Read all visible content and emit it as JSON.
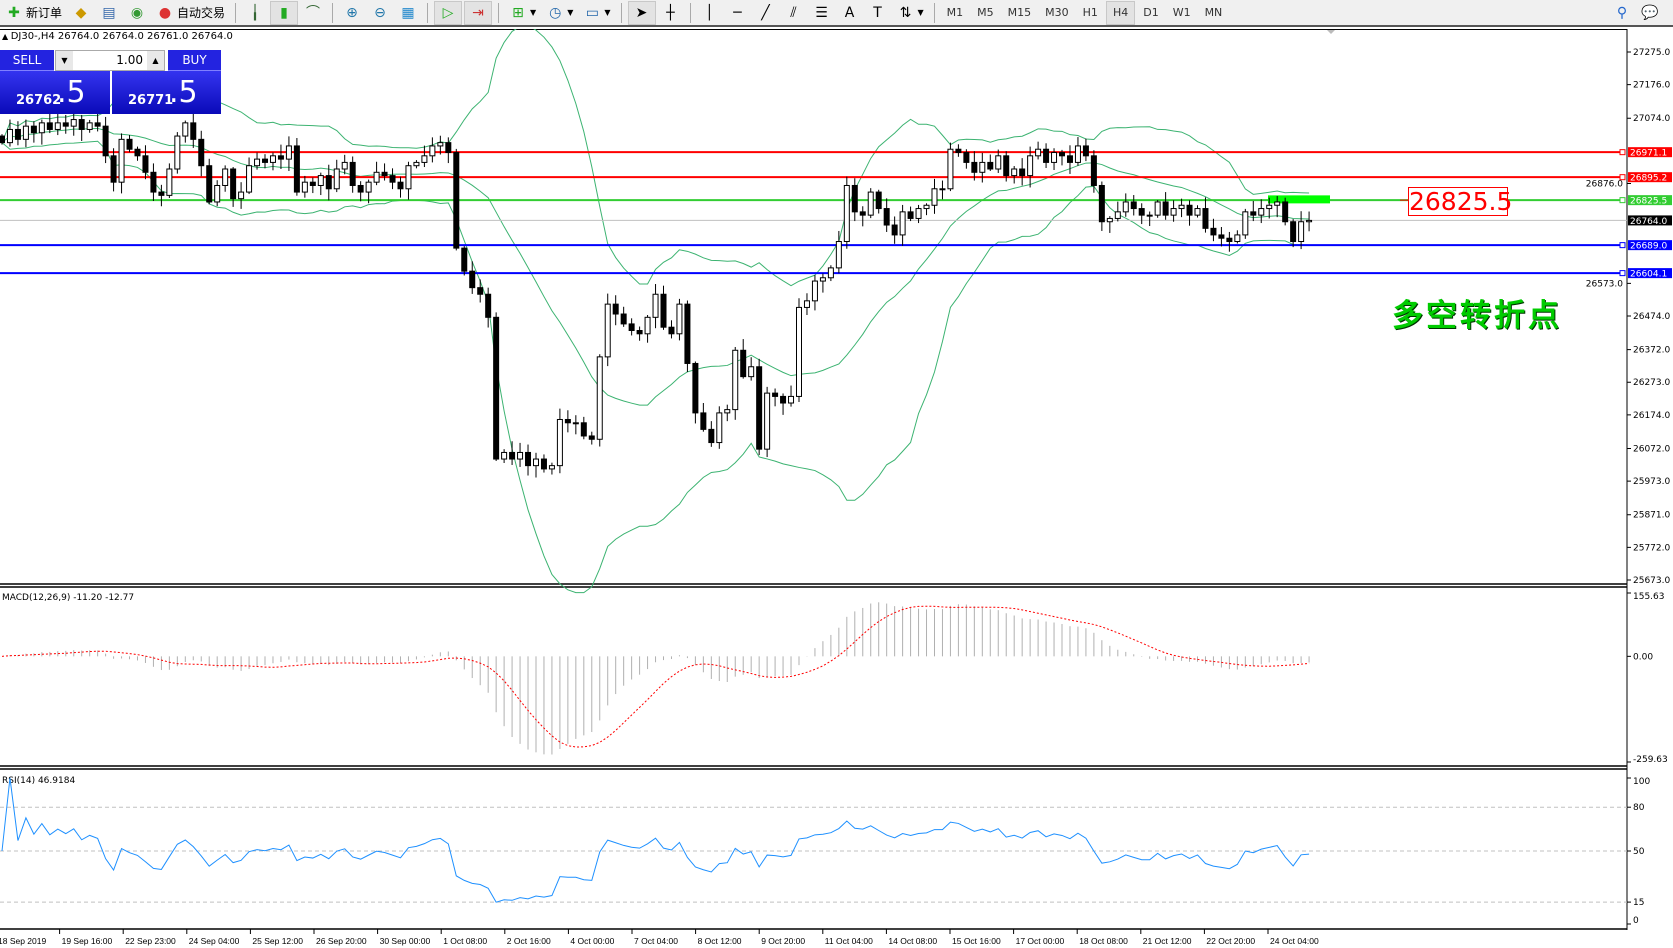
{
  "toolbar": {
    "new_order": "新订单",
    "auto_trading": "自动交易",
    "icons": [
      "new-order-icon",
      "market-watch-icon",
      "data-window-icon",
      "navigator-icon",
      "auto-trading-icon",
      "bar-chart-icon",
      "candlestick-icon",
      "line-chart-icon",
      "zoom-in-icon",
      "zoom-out-icon",
      "tile-windows-icon",
      "auto-scroll-icon",
      "chart-shift-icon",
      "indicators-icon",
      "periods-icon",
      "templates-icon",
      "cursor-icon",
      "crosshair-icon",
      "vertical-line-icon",
      "horizontal-line-icon",
      "trendline-icon",
      "equidistant-channel-icon",
      "fibonacci-icon",
      "text-icon",
      "text-label-icon",
      "arrows-icon",
      "search-icon",
      "chat-icon"
    ],
    "timeframes": [
      "M1",
      "M5",
      "M15",
      "M30",
      "H1",
      "H4",
      "D1",
      "W1",
      "MN"
    ],
    "active_timeframe": "H4"
  },
  "chart_header": "DJ30-,H4  26764.0 26764.0 26761.0 26764.0",
  "trade_panel": {
    "sell_label": "SELL",
    "buy_label": "BUY",
    "lot": "1.00",
    "sell_price_main": "26762",
    "sell_price_frac": ".5",
    "buy_price_main": "26771",
    "buy_price_frac": ".5"
  },
  "annotation": {
    "price_box": "26825.5",
    "text": "多空转折点"
  },
  "colors": {
    "bull": "#ffffff",
    "bear": "#000000",
    "bands": "#3cb371",
    "red_line": "#ff0000",
    "green_line": "#32cd32",
    "blue_line": "#0000ff",
    "rsi": "#1e90ff",
    "macd_signal": "#ff0000",
    "macd_hist": "#b0b0b0",
    "highlight": "#00ff00"
  },
  "chart_data": [
    {
      "type": "candlestick",
      "symbol": "DJ30-",
      "timeframe": "H4",
      "ylim": [
        25673.0,
        27275.0
      ],
      "y_ticks": [
        "27275.0",
        "27176.0",
        "27074.0",
        "26876.0",
        "26573.0",
        "26474.0",
        "26372.0",
        "26273.0",
        "26174.0",
        "26072.0",
        "25973.0",
        "25871.0",
        "25772.0",
        "25673.0"
      ],
      "x_ticks": [
        "18 Sep 2019",
        "19 Sep 16:00",
        "22 Sep 23:00",
        "24 Sep 04:00",
        "25 Sep 12:00",
        "26 Sep 20:00",
        "30 Sep 00:00",
        "1 Oct 08:00",
        "2 Oct 16:00",
        "4 Oct 00:00",
        "7 Oct 04:00",
        "8 Oct 12:00",
        "9 Oct 20:00",
        "11 Oct 04:00",
        "14 Oct 08:00",
        "15 Oct 16:00",
        "17 Oct 00:00",
        "18 Oct 08:00",
        "21 Oct 12:00",
        "22 Oct 20:00",
        "24 Oct 04:00"
      ],
      "close": [
        27000,
        27040,
        27010,
        27050,
        27030,
        27060,
        27040,
        27060,
        27050,
        27070,
        27040,
        27060,
        27050,
        26960,
        26880,
        27010,
        26980,
        26960,
        26910,
        26850,
        26840,
        26920,
        27020,
        27060,
        27010,
        26930,
        26820,
        26870,
        26920,
        26830,
        26850,
        26930,
        26950,
        26940,
        26960,
        26950,
        26990,
        26850,
        26880,
        26870,
        26900,
        26860,
        26920,
        26940,
        26870,
        26850,
        26880,
        26910,
        26900,
        26880,
        26860,
        26930,
        26940,
        26960,
        26990,
        27000,
        26970,
        26680,
        26610,
        26560,
        26540,
        26470,
        26040,
        26060,
        26040,
        26060,
        26020,
        26040,
        26010,
        26020,
        26160,
        26150,
        26150,
        26110,
        26100,
        26350,
        26510,
        26480,
        26450,
        26430,
        26420,
        26470,
        26540,
        26440,
        26420,
        26510,
        26330,
        26180,
        26130,
        26090,
        26180,
        26190,
        26370,
        26290,
        26320,
        26070,
        26240,
        26230,
        26210,
        26230,
        26500,
        26520,
        26580,
        26590,
        26620,
        26700,
        26870,
        26790,
        26780,
        26850,
        26800,
        26750,
        26720,
        26790,
        26770,
        26800,
        26810,
        26860,
        26860,
        26980,
        26970,
        26940,
        26910,
        26940,
        26920,
        26960,
        26900,
        26920,
        26900,
        26960,
        26980,
        26940,
        26970,
        26960,
        26940,
        26990,
        26960,
        26870,
        26760,
        26770,
        26790,
        26820,
        26800,
        26780,
        26780,
        26820,
        26780,
        26800,
        26810,
        26780,
        26800,
        26740,
        26720,
        26710,
        26700,
        26720,
        26790,
        26780,
        26800,
        26810,
        26820,
        26760,
        26700,
        26760,
        26764
      ],
      "indicator": "Bollinger Bands",
      "levels": [
        {
          "value": 26971.1,
          "label": "26971.1",
          "color": "#ff0000"
        },
        {
          "value": 26895.2,
          "label": "26895.2",
          "color": "#ff0000"
        },
        {
          "value": 26825.5,
          "label": "26825.5",
          "color": "#32cd32"
        },
        {
          "value": 26689.0,
          "label": "26689.0",
          "color": "#0000ff"
        },
        {
          "value": 26604.1,
          "label": "26604.1",
          "color": "#0000ff"
        }
      ],
      "current_price": {
        "value": 26764.0,
        "label": "26764.0"
      }
    },
    {
      "type": "macd",
      "label": "MACD(12,26,9) -11.20 -12.77",
      "ylim": [
        -259.63,
        155.63
      ],
      "y_ticks": [
        "155.63",
        "0.00",
        "-259.63"
      ]
    },
    {
      "type": "line",
      "label": "RSI(14) 46.9184",
      "ylim": [
        0,
        100
      ],
      "y_ticks": [
        "100",
        "80",
        "50",
        "15",
        "0"
      ],
      "levels": [
        80,
        50,
        15
      ]
    }
  ]
}
